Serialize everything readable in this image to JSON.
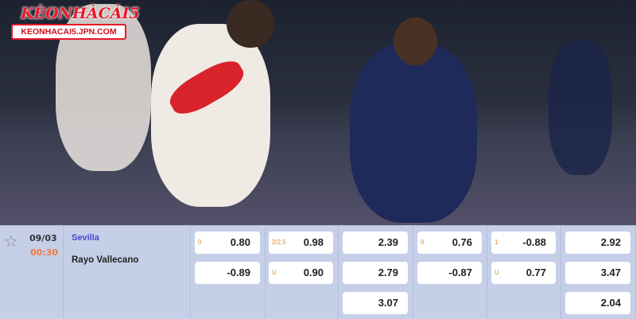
{
  "logo": {
    "brand": "KÈONHÀCÁI5",
    "url": "KEONHACAI5.JPN.COM"
  },
  "match": {
    "date": "09/03",
    "time": "00:30",
    "home": "Sevilla",
    "away": "Rayo Vallecano",
    "favorite_icon": "star-outline-icon"
  },
  "odds": [
    [
      {
        "label": "0",
        "value": "0.80"
      },
      {
        "label": "",
        "value": "-0.89"
      }
    ],
    [
      {
        "label": "2/2.5",
        "value": "0.98"
      },
      {
        "label": "U",
        "value": "0.90"
      }
    ],
    [
      {
        "label": "",
        "value": "2.39"
      },
      {
        "label": "",
        "value": "2.79"
      },
      {
        "label": "",
        "value": "3.07"
      }
    ],
    [
      {
        "label": "0",
        "value": "0.76"
      },
      {
        "label": "",
        "value": "-0.87"
      }
    ],
    [
      {
        "label": "1",
        "value": "-0.88"
      },
      {
        "label": "U",
        "value": "0.77"
      }
    ],
    [
      {
        "label": "",
        "value": "2.92"
      },
      {
        "label": "",
        "value": "3.47"
      },
      {
        "label": "",
        "value": "2.04"
      }
    ]
  ],
  "colors": {
    "home_team": "#4a4ad0",
    "time": "#f07b3c",
    "handicap_label": "#d88a3a",
    "table_bg": "#c5cfe8"
  }
}
